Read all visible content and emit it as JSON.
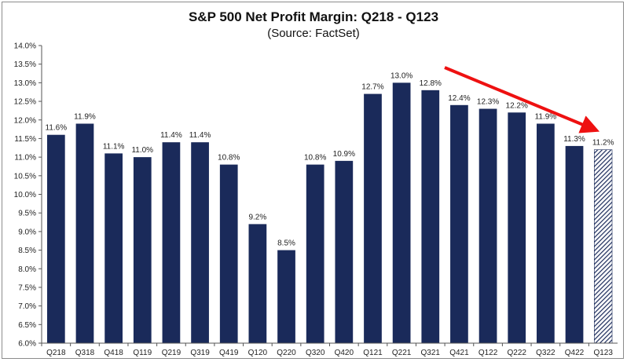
{
  "chart_data": {
    "type": "bar",
    "title": "S&P 500 Net Profit Margin: Q218 - Q123",
    "subtitle": "(Source: FactSet)",
    "categories": [
      "Q218",
      "Q318",
      "Q418",
      "Q119",
      "Q219",
      "Q319",
      "Q419",
      "Q120",
      "Q220",
      "Q320",
      "Q420",
      "Q121",
      "Q221",
      "Q321",
      "Q421",
      "Q122",
      "Q222",
      "Q322",
      "Q422",
      "Q123"
    ],
    "values": [
      11.6,
      11.9,
      11.1,
      11.0,
      11.4,
      11.4,
      10.8,
      9.2,
      8.5,
      10.8,
      10.9,
      12.7,
      13.0,
      12.8,
      12.4,
      12.3,
      12.2,
      11.9,
      11.3,
      11.2
    ],
    "data_labels": [
      "11.6%",
      "11.9%",
      "11.1%",
      "11.0%",
      "11.4%",
      "11.4%",
      "10.8%",
      "9.2%",
      "8.5%",
      "10.8%",
      "10.9%",
      "12.7%",
      "13.0%",
      "12.8%",
      "12.4%",
      "12.3%",
      "12.2%",
      "11.9%",
      "11.3%",
      "11.2%"
    ],
    "estimated": [
      false,
      false,
      false,
      false,
      false,
      false,
      false,
      false,
      false,
      false,
      false,
      false,
      false,
      false,
      false,
      false,
      false,
      false,
      false,
      true
    ],
    "ylim": [
      6.0,
      14.0
    ],
    "y_ticks": [
      "6.0%",
      "6.5%",
      "7.0%",
      "7.5%",
      "8.0%",
      "8.5%",
      "9.0%",
      "9.5%",
      "10.0%",
      "10.5%",
      "11.0%",
      "11.5%",
      "12.0%",
      "12.5%",
      "13.0%",
      "13.5%",
      "14.0%"
    ],
    "xlabel": "",
    "ylabel": "",
    "grid": false,
    "legend": "none",
    "annotation": "downward-trend-arrow",
    "colors": {
      "bar": "#1a2a5a",
      "estimate_hatch": "#1a2a5a",
      "arrow": "#ee1111"
    }
  }
}
